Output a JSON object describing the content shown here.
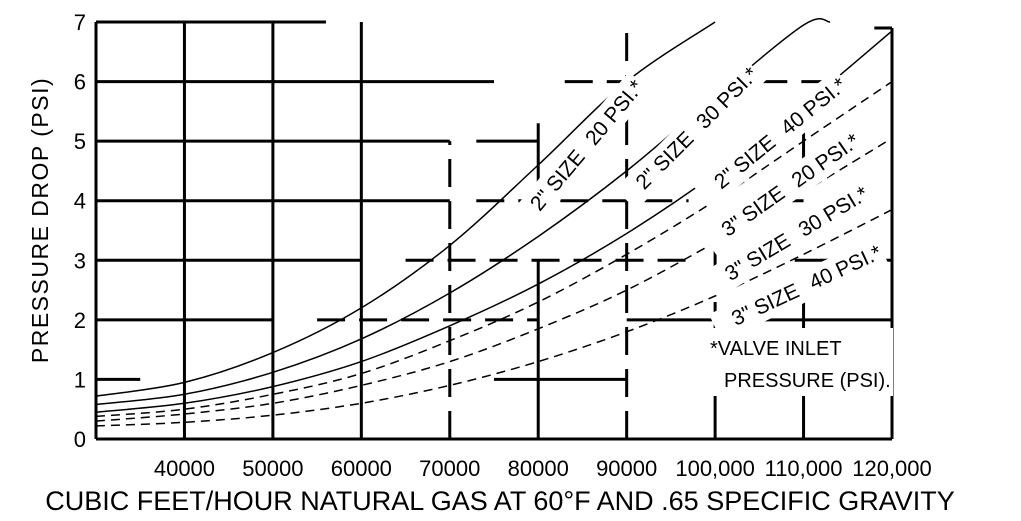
{
  "chart_data": {
    "type": "line",
    "title": "",
    "xlabel": "CUBIC FEET/HOUR NATURAL GAS AT 60°F AND .65 SPECIFIC GRAVITY",
    "ylabel": "PRESSURE DROP (PSI)",
    "xlim": [
      30000,
      120000
    ],
    "ylim": [
      0,
      7
    ],
    "x_ticks": [
      "40000",
      "50000",
      "60000",
      "70000",
      "80000",
      "90000",
      "100,000",
      "110,000",
      "120,000"
    ],
    "x_tick_values": [
      40000,
      50000,
      60000,
      70000,
      80000,
      90000,
      100000,
      110000,
      120000
    ],
    "y_ticks": [
      "0",
      "1",
      "2",
      "3",
      "4",
      "5",
      "6",
      "7"
    ],
    "y_tick_values": [
      0,
      1,
      2,
      3,
      4,
      5,
      6,
      7
    ],
    "grid": true,
    "series": [
      {
        "name": "2\" SIZE 20 PSI.*",
        "style": "solid",
        "x": [
          30000,
          40000,
          50000,
          60000,
          70000,
          80000,
          90000,
          100000
        ],
        "y": [
          0.72,
          0.95,
          1.45,
          2.2,
          3.25,
          4.6,
          6.0,
          7.0
        ]
      },
      {
        "name": "2\" SIZE 30 PSI.*",
        "style": "solid",
        "x": [
          30000,
          40000,
          50000,
          60000,
          70000,
          80000,
          90000,
          100000,
          110000,
          113000
        ],
        "y": [
          0.58,
          0.75,
          1.12,
          1.68,
          2.45,
          3.4,
          4.5,
          5.75,
          6.95,
          7.0
        ]
      },
      {
        "name": "2\" SIZE 40 PSI.*",
        "style": "solid",
        "x": [
          30000,
          40000,
          50000,
          60000,
          70000,
          80000,
          90000,
          100000,
          110000,
          120000
        ],
        "y": [
          0.45,
          0.6,
          0.88,
          1.3,
          1.9,
          2.6,
          3.45,
          4.45,
          5.6,
          6.85
        ]
      },
      {
        "name": "3\" SIZE 20 PSI.*",
        "style": "dashed",
        "x": [
          30000,
          40000,
          50000,
          60000,
          70000,
          80000,
          90000,
          100000,
          110000,
          120000
        ],
        "y": [
          0.38,
          0.5,
          0.75,
          1.1,
          1.65,
          2.3,
          3.1,
          4.0,
          5.0,
          6.0
        ]
      },
      {
        "name": "3\" SIZE 30 PSI.*",
        "style": "dashed",
        "x": [
          30000,
          40000,
          50000,
          60000,
          70000,
          80000,
          90000,
          100000,
          110000,
          120000
        ],
        "y": [
          0.3,
          0.42,
          0.6,
          0.9,
          1.3,
          1.85,
          2.5,
          3.3,
          4.15,
          5.05
        ]
      },
      {
        "name": "3\" SIZE 40 PSI.*",
        "style": "dashed",
        "x": [
          30000,
          40000,
          50000,
          60000,
          70000,
          80000,
          90000,
          100000,
          110000,
          120000
        ],
        "y": [
          0.22,
          0.28,
          0.4,
          0.6,
          0.9,
          1.3,
          1.8,
          2.4,
          3.1,
          3.85
        ]
      }
    ],
    "curve_labels": [
      {
        "size": "2\" SIZE",
        "pressure": "20 PSI.*"
      },
      {
        "size": "2\" SIZE",
        "pressure": "30 PSI.*"
      },
      {
        "size": "2\" SIZE",
        "pressure": "40 PSI.*"
      },
      {
        "size": "3\" SIZE",
        "pressure": "20 PSI.*"
      },
      {
        "size": "3\" SIZE",
        "pressure": "30 PSI.*"
      },
      {
        "size": "3\" SIZE",
        "pressure": "40 PSI.*"
      }
    ],
    "note": [
      "*VALVE INLET",
      "PRESSURE (PSI)."
    ],
    "colors": {
      "ink": "#000000",
      "background": "#ffffff"
    }
  }
}
